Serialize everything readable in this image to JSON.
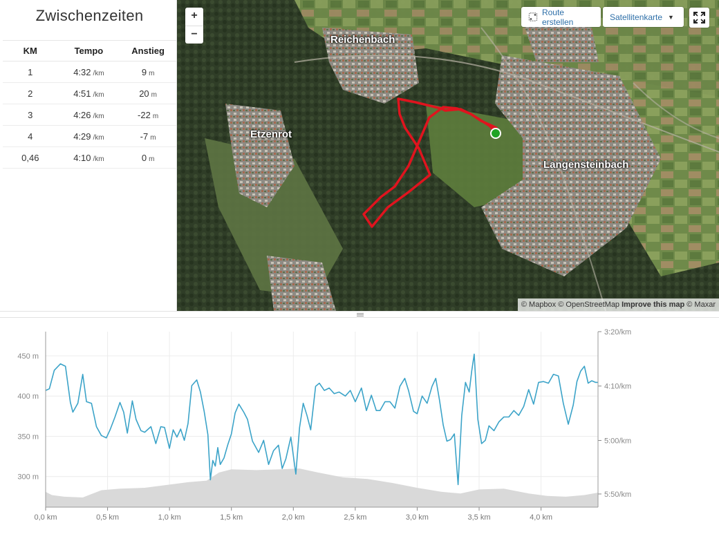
{
  "splits": {
    "title": "Zwischenzeiten",
    "headers": {
      "km": "KM",
      "pace": "Tempo",
      "elevation": "Anstieg"
    },
    "pace_unit": "/km",
    "elev_unit": "m",
    "rows": [
      {
        "km": "1",
        "pace": "4:32",
        "elev": "9"
      },
      {
        "km": "2",
        "pace": "4:51",
        "elev": "20"
      },
      {
        "km": "3",
        "pace": "4:26",
        "elev": "-22"
      },
      {
        "km": "4",
        "pace": "4:29",
        "elev": "-7"
      },
      {
        "km": "0,46",
        "pace": "4:10",
        "elev": "0"
      }
    ]
  },
  "map": {
    "zoom_in": "+",
    "zoom_out": "−",
    "route_button": "Route erstellen",
    "maptype_button": "Satellitenkarte",
    "labels": {
      "reichenbach": "Reichenbach",
      "etzenrot": "Etzenrot",
      "langensteinbach": "Langensteinbach"
    },
    "attribution": {
      "mapbox": "© Mapbox",
      "osm": "© OpenStreetMap",
      "improve": "Improve this map",
      "maxar": "© Maxar"
    },
    "route_color": "#e0141e",
    "start_color": "#1fa324"
  },
  "chart_data": {
    "type": "line",
    "x_unit": "km",
    "xlim": [
      0,
      4.46
    ],
    "x_ticks": [
      "0,0 km",
      "0,5 km",
      "1,0 km",
      "1,5 km",
      "2,0 km",
      "2,5 km",
      "3,0 km",
      "3,5 km",
      "4,0 km"
    ],
    "y_left_ticks": [
      "450 m",
      "400 m",
      "350 m",
      "300 m"
    ],
    "y_left_values": [
      450,
      400,
      350,
      300
    ],
    "y_left_range": [
      262,
      480
    ],
    "y_right_ticks": [
      "3:20/km",
      "4:10/km",
      "5:00/km",
      "5:50/km"
    ],
    "grid": true,
    "series": [
      {
        "kind": "elevation-area",
        "color": "#d9d9d9",
        "x": [
          0,
          0.05,
          0.15,
          0.3,
          0.45,
          0.6,
          0.8,
          1.0,
          1.15,
          1.3,
          1.4,
          1.5,
          1.7,
          1.9,
          2.05,
          2.2,
          2.4,
          2.6,
          2.8,
          3.0,
          3.2,
          3.35,
          3.5,
          3.7,
          3.9,
          4.05,
          4.2,
          4.35,
          4.46
        ],
        "y": [
          281,
          277,
          275,
          274,
          283,
          285,
          286,
          290,
          293,
          295,
          305,
          309,
          308,
          309,
          310,
          305,
          299,
          297,
          292,
          286,
          281,
          279,
          284,
          285,
          279,
          276,
          275,
          277,
          280
        ]
      },
      {
        "kind": "pace-line",
        "color": "#3ba3c8",
        "x": [
          0,
          0.03,
          0.07,
          0.12,
          0.16,
          0.2,
          0.22,
          0.26,
          0.3,
          0.33,
          0.37,
          0.41,
          0.45,
          0.49,
          0.52,
          0.56,
          0.6,
          0.63,
          0.66,
          0.7,
          0.73,
          0.77,
          0.8,
          0.85,
          0.89,
          0.93,
          0.96,
          1.0,
          1.03,
          1.06,
          1.09,
          1.12,
          1.15,
          1.18,
          1.22,
          1.25,
          1.28,
          1.31,
          1.33,
          1.35,
          1.37,
          1.39,
          1.41,
          1.44,
          1.47,
          1.5,
          1.53,
          1.56,
          1.6,
          1.63,
          1.67,
          1.72,
          1.76,
          1.8,
          1.84,
          1.88,
          1.91,
          1.94,
          1.98,
          2.02,
          2.05,
          2.08,
          2.11,
          2.14,
          2.18,
          2.21,
          2.25,
          2.29,
          2.33,
          2.37,
          2.42,
          2.46,
          2.5,
          2.55,
          2.59,
          2.63,
          2.67,
          2.7,
          2.74,
          2.78,
          2.82,
          2.86,
          2.9,
          2.93,
          2.97,
          3.0,
          3.04,
          3.08,
          3.12,
          3.15,
          3.18,
          3.21,
          3.24,
          3.27,
          3.3,
          3.33,
          3.36,
          3.39,
          3.42,
          3.44,
          3.46,
          3.49,
          3.52,
          3.55,
          3.58,
          3.62,
          3.66,
          3.7,
          3.74,
          3.78,
          3.82,
          3.86,
          3.9,
          3.94,
          3.98,
          4.02,
          4.06,
          4.1,
          4.14,
          4.18,
          4.22,
          4.26,
          4.29,
          4.32,
          4.35,
          4.38,
          4.41,
          4.44,
          4.46
        ],
        "y": [
          407,
          409,
          432,
          440,
          437,
          392,
          380,
          391,
          427,
          393,
          391,
          362,
          351,
          348,
          358,
          374,
          392,
          380,
          354,
          394,
          371,
          357,
          355,
          362,
          341,
          362,
          361,
          335,
          358,
          349,
          359,
          345,
          366,
          413,
          420,
          405,
          381,
          352,
          296,
          320,
          313,
          336,
          315,
          323,
          339,
          353,
          379,
          390,
          380,
          371,
          344,
          330,
          345,
          315,
          332,
          339,
          310,
          322,
          349,
          303,
          361,
          391,
          376,
          358,
          412,
          416,
          407,
          410,
          403,
          405,
          400,
          407,
          393,
          410,
          382,
          401,
          382,
          382,
          393,
          393,
          385,
          412,
          422,
          407,
          381,
          378,
          400,
          391,
          412,
          422,
          395,
          364,
          344,
          346,
          353,
          290,
          376,
          417,
          405,
          431,
          452,
          371,
          341,
          345,
          363,
          357,
          368,
          374,
          374,
          382,
          376,
          387,
          408,
          390,
          417,
          418,
          416,
          427,
          425,
          391,
          365,
          389,
          418,
          431,
          437,
          416,
          419,
          417,
          417
        ]
      }
    ]
  }
}
